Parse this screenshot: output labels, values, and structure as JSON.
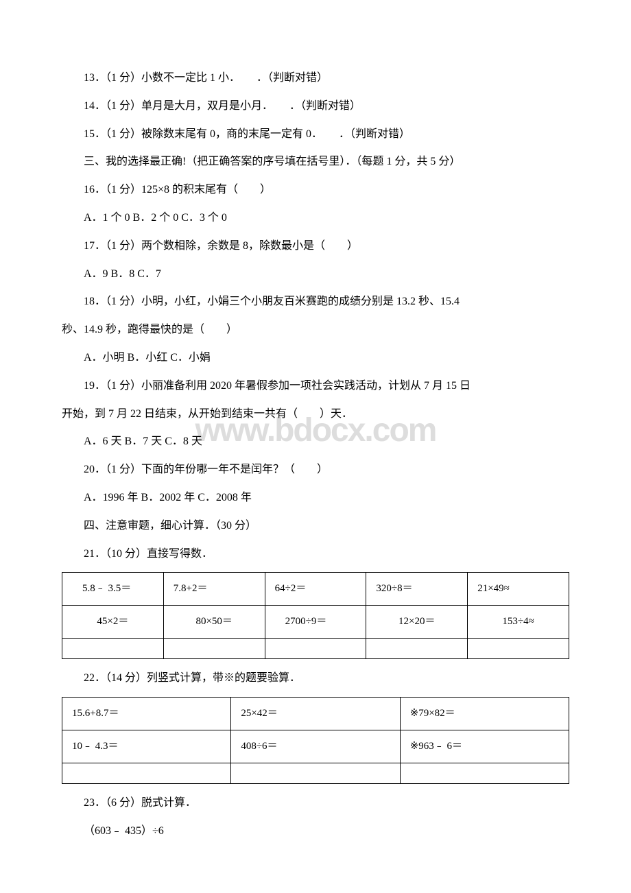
{
  "watermark": "www.bdocx.com",
  "q13": "13．（1 分）小数不一定比 1 小．　　．（判断对错）",
  "q14": "14．（1 分）单月是大月，双月是小月．　　．（判断对错）",
  "q15": "15．（1 分）被除数末尾有 0，商的末尾一定有 0．　　．（判断对错）",
  "section3": "三、我的选择最正确!（把正确答案的序号填在括号里）．（每题 1 分，共 5 分）",
  "q16": "16．（1 分）125×8 的积末尾有（　　）",
  "q16opts": "A．1 个 0 B．2 个 0 C．3 个 0",
  "q17": "17．（1 分）两个数相除，余数是 8，除数最小是（　　）",
  "q17opts": "A．9 B．8 C．7",
  "q18a": "18．（1 分）小明，小红，小娟三个小朋友百米赛跑的成绩分别是 13.2 秒、15.4",
  "q18b": "秒、14.9 秒，跑得最快的是（　　）",
  "q18opts": "A．小明 B．小红 C．小娟",
  "q19a": "19．（1 分）小丽准备利用 2020 年暑假参加一项社会实践活动，计划从 7 月 15 日",
  "q19b": "开始，到 7 月 22 日结束，从开始到结束一共有（　　）天．",
  "q19opts": "A．6 天 B．7 天 C．8 天",
  "q20": "20．（1 分）下面的年份哪一年不是闰年？（　　）",
  "q20opts": "A．1996 年 B．2002 年 C．2008 年",
  "section4": "四、注意审题，细心计算．（30 分）",
  "q21": "21．（10 分）直接写得数．",
  "table21": {
    "rows": [
      [
        "　5.8﹣ 3.5＝",
        "7.8+2＝",
        "64÷2＝",
        "320÷8＝",
        "21×49≈"
      ],
      [
        "45×2＝",
        "80×50＝",
        "　2700÷9＝",
        "12×20＝",
        "153÷4≈"
      ],
      [
        "",
        "",
        "",
        "",
        ""
      ]
    ]
  },
  "q22": "22．（14 分）列竖式计算，带※的题要验算．",
  "table22": {
    "rows": [
      [
        "15.6+8.7＝",
        "25×42＝",
        "※79×82＝"
      ],
      [
        "10﹣ 4.3＝",
        "408÷6＝",
        "※963﹣ 6＝"
      ],
      [
        "",
        "",
        ""
      ]
    ]
  },
  "q23": "23．（6 分）脱式计算．",
  "q23expr": "（603﹣ 435）÷6"
}
